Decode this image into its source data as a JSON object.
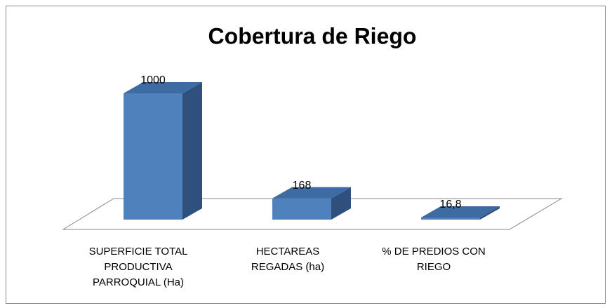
{
  "chart_data": {
    "type": "bar3d",
    "title": "Cobertura de Riego",
    "categories": [
      "SUPERFICIE TOTAL PRODUCTIVA PARROQUIAL (Ha)",
      "HECTAREAS REGADAS (ha)",
      "% DE PREDIOS CON RIEGO"
    ],
    "values": [
      1000,
      168,
      16.8
    ],
    "value_labels": [
      "1000",
      "168",
      "16,8"
    ],
    "color": "#4f81bd"
  }
}
